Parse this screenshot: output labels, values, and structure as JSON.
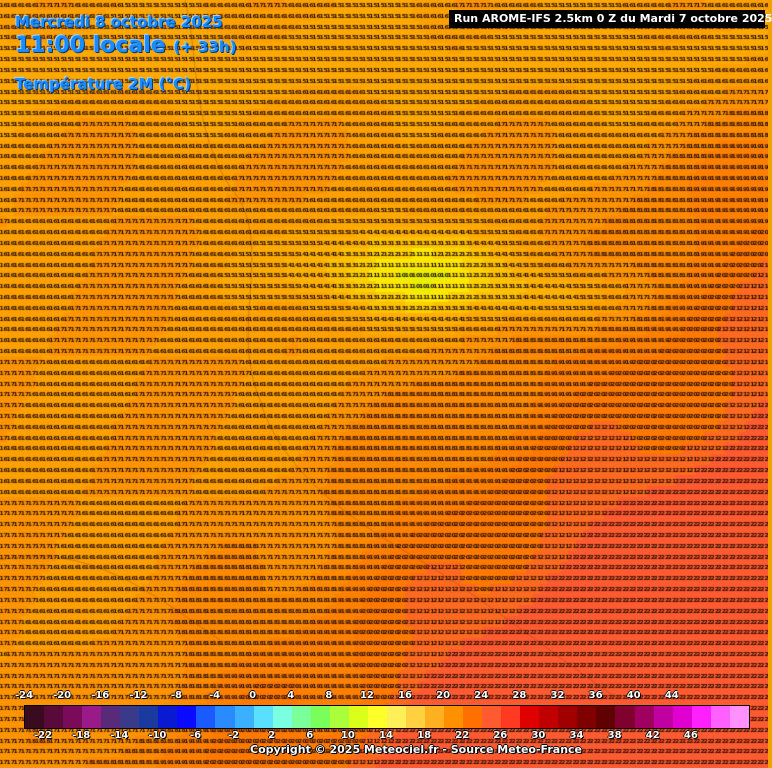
{
  "header": {
    "date": "Mercredi 8 octobre 2025",
    "time": "11:00 locale",
    "lead": "(+ 33h)",
    "parameter": "Température 2M (°C)"
  },
  "run_label": "Run AROME-IFS 2.5km 0 Z du Mardi 7 octobre 2025",
  "copyright": "Copyright © 2025 Meteociel.fr - Source Meteo-France",
  "legend": {
    "top_labels": [
      "-24",
      "-20",
      "-16",
      "-12",
      "-8",
      "-4",
      "0",
      "4",
      "8",
      "12",
      "16",
      "20",
      "24",
      "28",
      "32",
      "36",
      "40",
      "44"
    ],
    "bottom_labels": [
      "-22",
      "-18",
      "-14",
      "-10",
      "-6",
      "-2",
      "2",
      "6",
      "10",
      "14",
      "18",
      "22",
      "26",
      "30",
      "34",
      "38",
      "42",
      "46"
    ],
    "swatches": [
      "#3a0a1e",
      "#5a0a3a",
      "#7a0a5a",
      "#9a1a8a",
      "#5a2a7a",
      "#3a3a8a",
      "#1a3aa0",
      "#0a1ad0",
      "#0a0aff",
      "#1a5aff",
      "#2a8aff",
      "#3ab0ff",
      "#5ae0ff",
      "#7affe0",
      "#7aff9a",
      "#7aff5a",
      "#aaff3a",
      "#daff1a",
      "#ffff2a",
      "#fff05a",
      "#ffd040",
      "#ffb020",
      "#ff9000",
      "#ff7000",
      "#ff5a30",
      "#ff3a20",
      "#e00000",
      "#c00000",
      "#a00000",
      "#800000",
      "#600000",
      "#800030",
      "#a00060",
      "#c000a0",
      "#e000d0",
      "#ff20ff",
      "#ff60ff",
      "#ff90ff"
    ]
  },
  "grid": {
    "rows": 71,
    "cols": 108,
    "dominant_values": [
      "13",
      "14",
      "15",
      "16",
      "17",
      "18",
      "19",
      "20",
      "21",
      "22"
    ],
    "colors": {
      "v10": "#e8f000",
      "v11": "#ffe800",
      "v12": "#ffd000",
      "v13": "#ffc000",
      "v14": "#ffb000",
      "v15": "#ffa800",
      "v16": "#ffa000",
      "v17": "#ff9400",
      "v18": "#ff8a00",
      "v19": "#ff8000",
      "v20": "#ff7800",
      "v21": "#ff6a20",
      "v22": "#ff5a30"
    }
  }
}
